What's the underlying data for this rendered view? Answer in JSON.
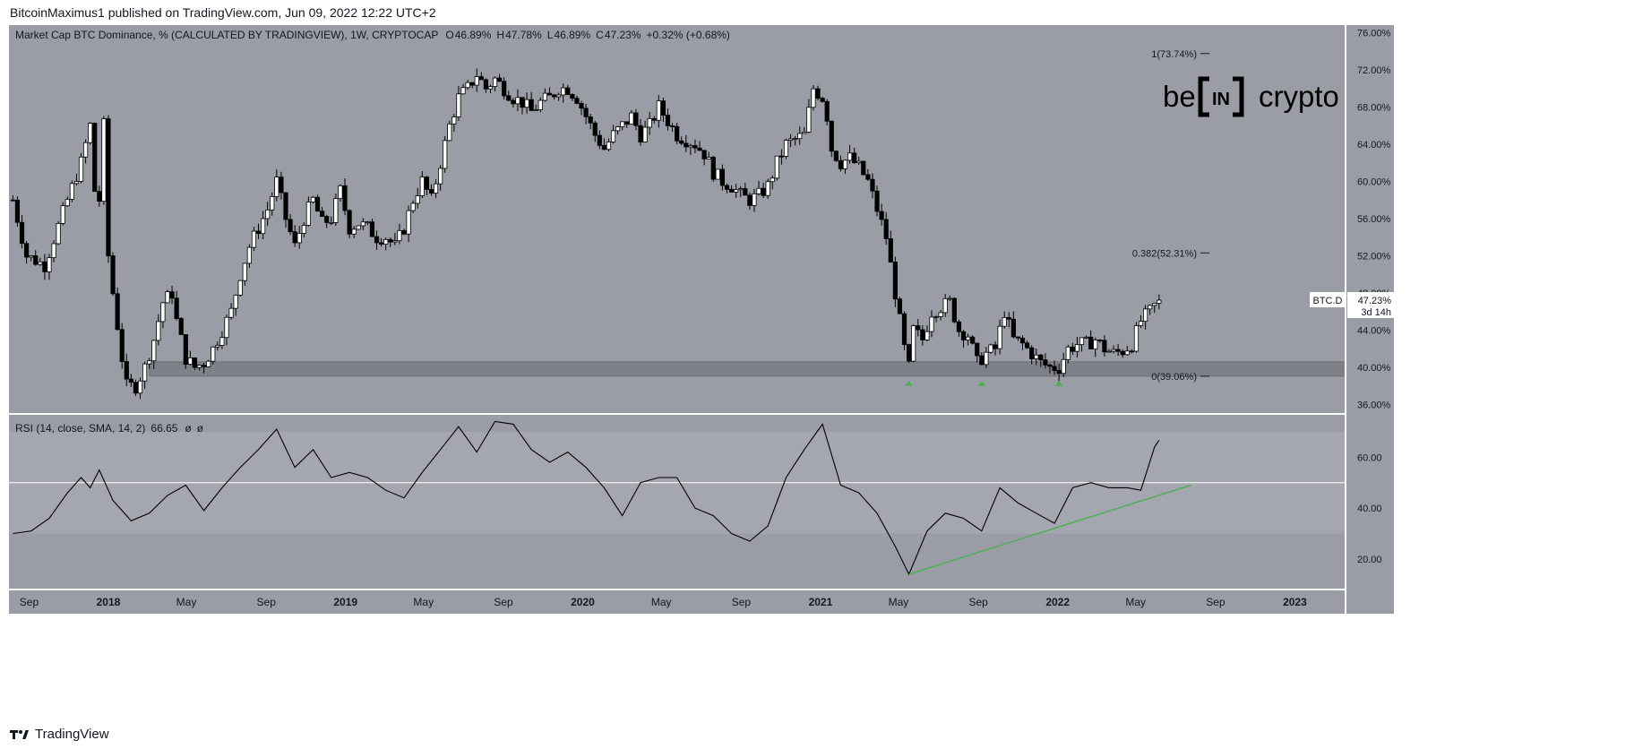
{
  "publisher_text": "BitcoinMaximus1 published on TradingView.com, Jun 09, 2022 12:22 UTC+2",
  "footer": {
    "brand": "TradingView",
    "logo_icon": "tradingview-logo-icon"
  },
  "header": {
    "symbol_text": "Market Cap BTC Dominance, % (CALCULATED BY TRADINGVIEW), 1W, CRYPTOCAP",
    "ohlc": [
      {
        "label": "O",
        "value": "46.89%"
      },
      {
        "label": "H",
        "value": "47.78%"
      },
      {
        "label": "L",
        "value": "46.89%"
      },
      {
        "label": "C",
        "value": "47.23%"
      }
    ],
    "change": "+0.32% (+0.68%)"
  },
  "watermark": {
    "left": "be",
    "mid": "IN",
    "right": "crypto"
  },
  "price_label": {
    "symbol": "BTC.D",
    "value": "47.23%",
    "countdown": "3d 14h"
  },
  "rsi_header": {
    "text": "RSI (14, close, SMA, 14, 2)",
    "value": "66.65",
    "na1": "ø",
    "na2": "ø"
  },
  "colors": {
    "background": "#9a9da6",
    "panel_border": "#ffffff",
    "candle_up": "#ffffff",
    "candle_down": "#000000",
    "support_zone": "#7e8188",
    "rsi_band": "#a4a7af",
    "green": "#4caf50",
    "fib_line": "#131722"
  },
  "chart_data": [
    {
      "type": "candlestick",
      "title": "Market Cap BTC Dominance, % (CALCULATED BY TRADINGVIEW), 1W, CRYPTOCAP",
      "y_axis_labels": [
        "76.00%",
        "72.00%",
        "68.00%",
        "64.00%",
        "60.00%",
        "56.00%",
        "52.00%",
        "48.00%",
        "44.00%",
        "40.00%",
        "36.00%"
      ],
      "ylim": [
        35,
        76.8
      ],
      "x_axis_labels": [
        "Sep",
        "2018",
        "May",
        "Sep",
        "2019",
        "May",
        "Sep",
        "2020",
        "May",
        "Sep",
        "2021",
        "May",
        "Sep",
        "2022",
        "May",
        "Sep",
        "2023"
      ],
      "x_axis_label_dates": [
        "2017-09-01",
        "2018-01-01",
        "2018-05-01",
        "2018-09-01",
        "2019-01-01",
        "2019-05-01",
        "2019-09-01",
        "2020-01-01",
        "2020-05-01",
        "2020-09-01",
        "2021-01-01",
        "2021-05-01",
        "2021-09-01",
        "2022-01-01",
        "2022-05-01",
        "2022-09-01",
        "2023-01-01"
      ],
      "xlim": [
        "2017-08-01",
        "2023-03-20"
      ],
      "support_zone": [
        39.06,
        40.6
      ],
      "fib_levels": [
        {
          "label": "1(73.74%)",
          "value": 73.74
        },
        {
          "label": "0.382(52.31%)",
          "value": 52.31
        },
        {
          "label": "0(39.06%)",
          "value": 39.06
        }
      ],
      "markers": [
        {
          "date": "2021-05-17",
          "value": 38.4
        },
        {
          "date": "2021-09-06",
          "value": 38.4
        },
        {
          "date": "2022-01-03",
          "value": 38.4
        }
      ],
      "close_path": [
        [
          "2017-08-07",
          58.0
        ],
        [
          "2017-08-28",
          52.0
        ],
        [
          "2017-09-25",
          51.0
        ],
        [
          "2017-10-30",
          58.0
        ],
        [
          "2017-11-20",
          62.0
        ],
        [
          "2017-12-04",
          66.0
        ],
        [
          "2017-12-11",
          59.0
        ],
        [
          "2017-12-18",
          58.0
        ],
        [
          "2017-12-25",
          66.0
        ],
        [
          "2018-01-01",
          52.0
        ],
        [
          "2018-01-08",
          48.0
        ],
        [
          "2018-01-22",
          41.0
        ],
        [
          "2018-01-29",
          38.0
        ],
        [
          "2018-02-12",
          38.0
        ],
        [
          "2018-02-26",
          40.0
        ],
        [
          "2018-03-12",
          43.0
        ],
        [
          "2018-03-26",
          47.0
        ],
        [
          "2018-04-09",
          48.0
        ],
        [
          "2018-04-16",
          45.0
        ],
        [
          "2018-04-30",
          41.0
        ],
        [
          "2018-05-14",
          40.0
        ],
        [
          "2018-05-28",
          40.5
        ],
        [
          "2018-06-11",
          42.0
        ],
        [
          "2018-06-25",
          44.0
        ],
        [
          "2018-07-09",
          46.0
        ],
        [
          "2018-07-23",
          50.0
        ],
        [
          "2018-08-06",
          53.0
        ],
        [
          "2018-08-20",
          55.0
        ],
        [
          "2018-09-03",
          57.0
        ],
        [
          "2018-09-17",
          60.0
        ],
        [
          "2018-10-01",
          56.0
        ],
        [
          "2018-10-15",
          53.0
        ],
        [
          "2018-10-29",
          56.0
        ],
        [
          "2018-11-12",
          58.0
        ],
        [
          "2018-11-26",
          55.5
        ],
        [
          "2018-12-10",
          56.0
        ],
        [
          "2018-12-24",
          59.0
        ],
        [
          "2019-01-07",
          55.0
        ],
        [
          "2019-01-21",
          55.5
        ],
        [
          "2019-02-04",
          55.0
        ],
        [
          "2019-02-18",
          54.0
        ],
        [
          "2019-03-04",
          54.0
        ],
        [
          "2019-03-18",
          53.0
        ],
        [
          "2019-04-01",
          55.0
        ],
        [
          "2019-04-15",
          58.0
        ],
        [
          "2019-04-29",
          60.0
        ],
        [
          "2019-05-13",
          58.0
        ],
        [
          "2019-05-27",
          62.0
        ],
        [
          "2019-06-10",
          66.0
        ],
        [
          "2019-06-24",
          69.0
        ],
        [
          "2019-07-08",
          70.0
        ],
        [
          "2019-07-22",
          71.5
        ],
        [
          "2019-08-05",
          70.0
        ],
        [
          "2019-08-19",
          71.0
        ],
        [
          "2019-09-02",
          70.0
        ],
        [
          "2019-09-16",
          69.0
        ],
        [
          "2019-09-30",
          68.5
        ],
        [
          "2019-10-14",
          67.5
        ],
        [
          "2019-10-28",
          68.5
        ],
        [
          "2019-11-11",
          69.0
        ],
        [
          "2019-11-25",
          70.0
        ],
        [
          "2019-12-09",
          70.0
        ],
        [
          "2019-12-23",
          69.0
        ],
        [
          "2020-01-06",
          67.0
        ],
        [
          "2020-01-20",
          65.0
        ],
        [
          "2020-02-03",
          63.5
        ],
        [
          "2020-02-17",
          65.0
        ],
        [
          "2020-03-02",
          66.0
        ],
        [
          "2020-03-16",
          67.0
        ],
        [
          "2020-03-30",
          65.0
        ],
        [
          "2020-04-13",
          66.0
        ],
        [
          "2020-04-27",
          68.0
        ],
        [
          "2020-05-11",
          66.5
        ],
        [
          "2020-05-25",
          65.0
        ],
        [
          "2020-06-08",
          64.5
        ],
        [
          "2020-06-22",
          64.0
        ],
        [
          "2020-07-06",
          63.0
        ],
        [
          "2020-07-20",
          61.0
        ],
        [
          "2020-08-03",
          60.0
        ],
        [
          "2020-08-17",
          59.5
        ],
        [
          "2020-08-31",
          58.5
        ],
        [
          "2020-09-14",
          58.0
        ],
        [
          "2020-09-28",
          58.5
        ],
        [
          "2020-10-12",
          59.5
        ],
        [
          "2020-10-26",
          62.0
        ],
        [
          "2020-11-09",
          64.0
        ],
        [
          "2020-11-23",
          64.5
        ],
        [
          "2020-12-07",
          65.0
        ],
        [
          "2020-12-21",
          70.0
        ],
        [
          "2021-01-04",
          69.0
        ],
        [
          "2021-01-11",
          67.0
        ],
        [
          "2021-01-18",
          63.5
        ],
        [
          "2021-02-01",
          62.0
        ],
        [
          "2021-02-15",
          62.5
        ],
        [
          "2021-03-01",
          61.5
        ],
        [
          "2021-03-15",
          60.0
        ],
        [
          "2021-03-29",
          57.0
        ],
        [
          "2021-04-12",
          54.0
        ],
        [
          "2021-04-26",
          48.0
        ],
        [
          "2021-05-10",
          42.0
        ],
        [
          "2021-05-17",
          40.0
        ],
        [
          "2021-05-24",
          44.0
        ],
        [
          "2021-06-07",
          43.0
        ],
        [
          "2021-06-21",
          46.0
        ],
        [
          "2021-07-05",
          46.5
        ],
        [
          "2021-07-19",
          47.0
        ],
        [
          "2021-08-02",
          44.0
        ],
        [
          "2021-08-16",
          43.5
        ],
        [
          "2021-08-30",
          40.5
        ],
        [
          "2021-09-13",
          41.5
        ],
        [
          "2021-09-27",
          42.0
        ],
        [
          "2021-10-11",
          46.0
        ],
        [
          "2021-10-25",
          43.0
        ],
        [
          "2021-11-08",
          42.5
        ],
        [
          "2021-11-22",
          41.5
        ],
        [
          "2021-12-06",
          40.5
        ],
        [
          "2021-12-20",
          40.0
        ],
        [
          "2022-01-03",
          40.0
        ],
        [
          "2022-01-17",
          42.0
        ],
        [
          "2022-01-31",
          42.5
        ],
        [
          "2022-02-14",
          42.5
        ],
        [
          "2022-02-28",
          43.0
        ],
        [
          "2022-03-14",
          42.0
        ],
        [
          "2022-03-28",
          41.5
        ],
        [
          "2022-04-11",
          41.8
        ],
        [
          "2022-04-25",
          42.5
        ],
        [
          "2022-05-09",
          45.0
        ],
        [
          "2022-05-23",
          46.0
        ],
        [
          "2022-06-06",
          47.23
        ]
      ]
    },
    {
      "type": "line",
      "title": "RSI (14, close, SMA, 14, 2)",
      "y_axis_labels": [
        "60.00",
        "40.00",
        "20.00"
      ],
      "ylim": [
        8,
        77
      ],
      "band": [
        30,
        70
      ],
      "midline": 50,
      "x": [
        "2017-08-07",
        "2017-09-04",
        "2017-10-02",
        "2017-10-30",
        "2017-11-20",
        "2017-12-04",
        "2017-12-18",
        "2018-01-08",
        "2018-02-05",
        "2018-03-05",
        "2018-04-02",
        "2018-04-30",
        "2018-05-28",
        "2018-06-25",
        "2018-07-23",
        "2018-08-20",
        "2018-09-17",
        "2018-10-15",
        "2018-11-12",
        "2018-12-10",
        "2019-01-07",
        "2019-02-04",
        "2019-03-04",
        "2019-04-01",
        "2019-04-29",
        "2019-05-27",
        "2019-06-24",
        "2019-07-22",
        "2019-08-19",
        "2019-09-16",
        "2019-10-14",
        "2019-11-11",
        "2019-12-09",
        "2020-01-06",
        "2020-02-03",
        "2020-03-02",
        "2020-03-30",
        "2020-04-27",
        "2020-05-25",
        "2020-06-22",
        "2020-07-20",
        "2020-08-17",
        "2020-09-14",
        "2020-10-12",
        "2020-11-09",
        "2020-12-07",
        "2021-01-04",
        "2021-02-01",
        "2021-03-01",
        "2021-03-29",
        "2021-04-26",
        "2021-05-17",
        "2021-06-14",
        "2021-07-12",
        "2021-08-09",
        "2021-09-06",
        "2021-10-04",
        "2021-11-01",
        "2021-11-29",
        "2021-12-27",
        "2022-01-24",
        "2022-02-21",
        "2022-03-21",
        "2022-04-18",
        "2022-05-09",
        "2022-05-30",
        "2022-06-06"
      ],
      "values": [
        30,
        31,
        36,
        46,
        52,
        48,
        55,
        43,
        35,
        38,
        45,
        49,
        39,
        48,
        56,
        63,
        71,
        56,
        63,
        52,
        54,
        52,
        47,
        44,
        54,
        63,
        72,
        62,
        74,
        73,
        63,
        58,
        62,
        56,
        48,
        37,
        50,
        52,
        52,
        40,
        37,
        30,
        27,
        33,
        52,
        63,
        73,
        49,
        46,
        38,
        25,
        14,
        31,
        38,
        36,
        31,
        48,
        42,
        38,
        34,
        48,
        50,
        48,
        48,
        47,
        64,
        66.65
      ]
    }
  ]
}
